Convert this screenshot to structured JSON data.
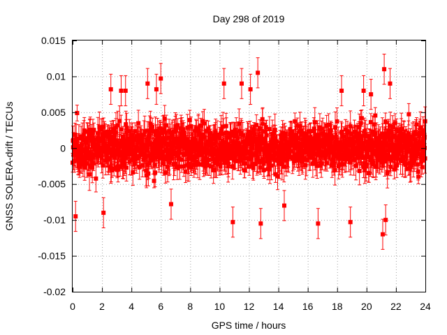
{
  "chart_data": {
    "type": "scatter",
    "title": "Day 298 of 2019",
    "xlabel": "GPS time / hours",
    "ylabel": "GNSS SOLERA-drift / TECUs",
    "xlim": [
      0,
      24
    ],
    "ylim": [
      -0.02,
      0.015
    ],
    "xticks": [
      0,
      2,
      4,
      6,
      8,
      10,
      12,
      14,
      16,
      18,
      20,
      22,
      24
    ],
    "xtick_labels": [
      "0",
      "2",
      "4",
      "6",
      "8",
      "10",
      "12",
      "14",
      "16",
      "18",
      "20",
      "22",
      "24"
    ],
    "yticks": [
      -0.02,
      -0.015,
      -0.01,
      -0.005,
      0,
      0.005,
      0.01,
      0.015
    ],
    "ytick_labels": [
      "-0.02",
      "-0.015",
      "-0.01",
      "-0.005",
      "0",
      "0.005",
      "0.01",
      "0.015"
    ],
    "grid": true,
    "series": [
      {
        "name": "SOLERA drift",
        "color": "#ff0000",
        "marker": "square",
        "error_bars": true,
        "typical_error": 0.0015,
        "typical_spread": 0.0022,
        "notable_points": [
          {
            "x": 0.2,
            "y": -0.0095
          },
          {
            "x": 2.1,
            "y": -0.009
          },
          {
            "x": 2.6,
            "y": 0.0082
          },
          {
            "x": 3.3,
            "y": 0.008
          },
          {
            "x": 3.6,
            "y": 0.008
          },
          {
            "x": 5.1,
            "y": 0.009
          },
          {
            "x": 5.7,
            "y": 0.0082
          },
          {
            "x": 6.0,
            "y": 0.0097
          },
          {
            "x": 6.7,
            "y": -0.0078
          },
          {
            "x": 10.3,
            "y": 0.009
          },
          {
            "x": 10.9,
            "y": -0.0103
          },
          {
            "x": 11.5,
            "y": 0.009
          },
          {
            "x": 12.1,
            "y": 0.0082
          },
          {
            "x": 12.6,
            "y": 0.0105
          },
          {
            "x": 12.8,
            "y": -0.0105
          },
          {
            "x": 14.4,
            "y": -0.008
          },
          {
            "x": 16.7,
            "y": -0.0105
          },
          {
            "x": 18.3,
            "y": 0.008
          },
          {
            "x": 18.9,
            "y": -0.0103
          },
          {
            "x": 19.8,
            "y": 0.008
          },
          {
            "x": 20.3,
            "y": 0.0075
          },
          {
            "x": 21.2,
            "y": 0.011
          },
          {
            "x": 21.1,
            "y": -0.012
          },
          {
            "x": 21.3,
            "y": -0.01
          },
          {
            "x": 21.6,
            "y": 0.009
          }
        ]
      }
    ]
  }
}
